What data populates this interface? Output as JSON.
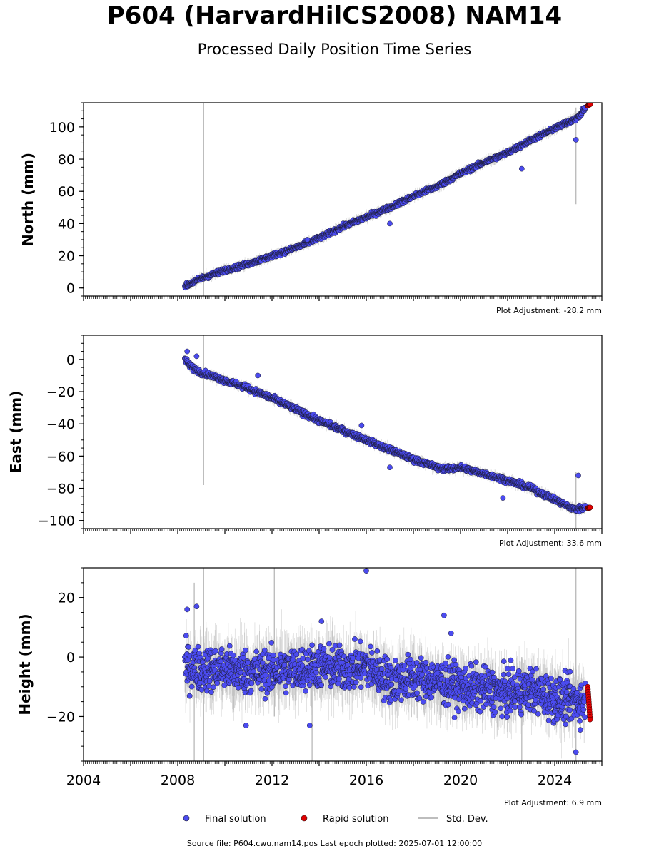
{
  "header": {
    "title": "P604 (HarvardHilCS2008) NAM14",
    "subtitle": "Processed Daily Position Time Series"
  },
  "legend": {
    "final": "Final solution",
    "rapid": "Rapid solution",
    "std": "Std. Dev."
  },
  "footer": {
    "source": "Source file: P604.cwu.nam14.pos  Last epoch plotted: 2025-07-01 12:00:00"
  },
  "colors": {
    "final": "#4b4bf0",
    "rapid": "#e00000",
    "std": "#bdbdbd"
  },
  "chart_data": [
    {
      "type": "scatter",
      "ylabel": "North (mm)",
      "adjustment": "Plot Adjustment: -28.2 mm",
      "xlim": [
        2004.0,
        2026.0
      ],
      "ylim": [
        -5,
        115
      ],
      "yticks": [
        0,
        20,
        40,
        60,
        80,
        100
      ],
      "ytick_labels": [
        "0",
        "20",
        "40",
        "60",
        "80",
        "100"
      ],
      "series": [
        {
          "name": "Final solution",
          "x": [
            2008.3,
            2009.0,
            2010.0,
            2011.0,
            2012.0,
            2013.0,
            2014.0,
            2015.0,
            2016.0,
            2017.0,
            2018.0,
            2019.0,
            2020.0,
            2021.0,
            2022.0,
            2023.0,
            2024.0,
            2025.0,
            2025.3
          ],
          "y": [
            1,
            6,
            11,
            15,
            20,
            25,
            31,
            38,
            44,
            50,
            57,
            63,
            71,
            78,
            84,
            92,
            99,
            106,
            112
          ]
        },
        {
          "name": "Rapid solution",
          "x": [
            2025.4,
            2025.5
          ],
          "y": [
            113,
            114
          ]
        }
      ],
      "outliers": {
        "x": [
          2022.6,
          2024.9,
          2017.0,
          2013.5
        ],
        "y": [
          74,
          92,
          40,
          30
        ]
      },
      "std_spikes": {
        "x": [
          2009.1,
          2024.9
        ],
        "y_low": [
          -5,
          52
        ],
        "y_high": [
          115,
          112
        ]
      }
    },
    {
      "type": "scatter",
      "ylabel": "East (mm)",
      "adjustment": "Plot Adjustment: 33.6 mm",
      "xlim": [
        2004.0,
        2026.0
      ],
      "ylim": [
        -105,
        15
      ],
      "yticks": [
        -100,
        -80,
        -60,
        -40,
        -20,
        0
      ],
      "ytick_labels": [
        "−100",
        "−80",
        "−60",
        "−40",
        "−20",
        "0"
      ],
      "series": [
        {
          "name": "Final solution",
          "x": [
            2008.3,
            2008.6,
            2009.0,
            2010.0,
            2011.0,
            2012.0,
            2013.0,
            2014.0,
            2015.0,
            2016.0,
            2017.0,
            2018.0,
            2019.0,
            2019.5,
            2020.0,
            2021.0,
            2022.0,
            2023.0,
            2024.0,
            2024.8,
            2025.3
          ],
          "y": [
            0,
            -5,
            -8,
            -13,
            -18,
            -24,
            -31,
            -38,
            -44,
            -50,
            -56,
            -62,
            -67,
            -68,
            -67,
            -71,
            -75,
            -80,
            -87,
            -93,
            -92
          ]
        },
        {
          "name": "Rapid solution",
          "x": [
            2025.4,
            2025.5
          ],
          "y": [
            -92,
            -92
          ]
        }
      ],
      "outliers": {
        "x": [
          2008.4,
          2008.8,
          2011.4,
          2017.0,
          2015.8,
          2021.8,
          2025.0
        ],
        "y": [
          5,
          2,
          -10,
          -67,
          -41,
          -86,
          -72
        ]
      },
      "std_spikes": {
        "x": [
          2009.1,
          2024.9
        ],
        "y_low": [
          -78,
          -105
        ],
        "y_high": [
          15,
          -70
        ]
      }
    },
    {
      "type": "scatter",
      "ylabel": "Height (mm)",
      "adjustment": "Plot Adjustment: 6.9 mm",
      "xlim": [
        2004.0,
        2026.0
      ],
      "ylim": [
        -35,
        30
      ],
      "yticks": [
        -20,
        0,
        20
      ],
      "ytick_labels": [
        "−20",
        "0",
        "20"
      ],
      "xticks": [
        2004,
        2008,
        2012,
        2016,
        2020,
        2024
      ],
      "xtick_labels": [
        "2004",
        "2008",
        "2012",
        "2016",
        "2020",
        "2024"
      ],
      "series": [
        {
          "name": "Final solution",
          "x": [
            2008.3,
            2009.0,
            2010.0,
            2011.0,
            2012.0,
            2013.0,
            2014.0,
            2015.0,
            2016.0,
            2017.0,
            2018.0,
            2019.0,
            2020.0,
            2021.0,
            2022.0,
            2023.0,
            2024.0,
            2025.3
          ],
          "y": [
            -3,
            -4,
            -4,
            -5,
            -5,
            -4,
            -3,
            -4,
            -3,
            -8,
            -7,
            -8,
            -10,
            -11,
            -12,
            -11,
            -14,
            -15
          ]
        },
        {
          "name": "Rapid solution",
          "x": [
            2025.4,
            2025.5
          ],
          "y": [
            -10,
            -21
          ]
        }
      ],
      "outliers": {
        "x": [
          2016.0,
          2008.4,
          2008.8,
          2014.1,
          2019.3,
          2024.9,
          2013.6,
          2010.9,
          2019.6
        ],
        "y": [
          29,
          16,
          17,
          12,
          14,
          -32,
          -23,
          -23,
          8
        ]
      },
      "std_spikes": {
        "x": [
          2008.7,
          2009.1,
          2012.1,
          2024.9,
          2013.7,
          2022.6
        ],
        "y_low": [
          -35,
          -35,
          -20,
          -35,
          -35,
          -35
        ],
        "y_high": [
          25,
          30,
          30,
          30,
          -5,
          0
        ]
      }
    }
  ]
}
